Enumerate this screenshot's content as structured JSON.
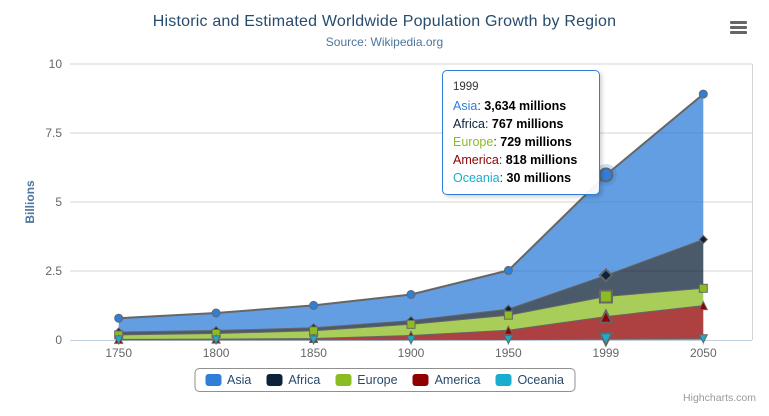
{
  "credits": {
    "label": "Highcharts.com"
  },
  "context_menu": {
    "icon": "hamburger-icon"
  },
  "theme": {
    "title_color": "#274b6d",
    "subtitle_color": "#4d759e",
    "axis_label_color": "#666666",
    "axis_title_color": "#4d759e",
    "legend_text_color": "#274b6d",
    "legend_border_color": "#909090",
    "grid_line_color": "#d4d4d4",
    "axis_line_color": "#c0d0e0",
    "series_line_color": "#666666",
    "tooltip_border_color": "#2f7ed8",
    "credits_color": "#999999",
    "fill_opacity": 0.75
  },
  "chart_data": {
    "type": "area",
    "stacking": "normal",
    "title": "Historic and Estimated Worldwide Population Growth by Region",
    "subtitle": "Source: Wikipedia.org",
    "categories": [
      "1750",
      "1800",
      "1850",
      "1900",
      "1950",
      "1999",
      "2050"
    ],
    "xlabel": "",
    "ylabel": "Billions",
    "ylim": [
      0,
      10
    ],
    "yticks": [
      "0",
      "2.5",
      "5",
      "7.5",
      "10"
    ],
    "ytick_values": [
      0,
      2.5,
      5,
      7.5,
      10
    ],
    "value_unit": "millions",
    "grid": "horizontal",
    "legend_position": "bottom",
    "series": [
      {
        "name": "Asia",
        "color": "#2f7ed8",
        "marker": "circle",
        "values": [
          502,
          635,
          809,
          947,
          1402,
          3634,
          5268
        ]
      },
      {
        "name": "Africa",
        "color": "#0d233a",
        "marker": "diamond",
        "values": [
          106,
          107,
          111,
          133,
          221,
          767,
          1766
        ]
      },
      {
        "name": "Europe",
        "color": "#8bbc21",
        "marker": "square",
        "values": [
          163,
          203,
          276,
          408,
          547,
          729,
          628
        ]
      },
      {
        "name": "America",
        "color": "#910000",
        "marker": "triangle",
        "values": [
          18,
          31,
          54,
          156,
          339,
          818,
          1201
        ]
      },
      {
        "name": "Oceania",
        "color": "#1aadce",
        "marker": "triangle-down",
        "values": [
          2,
          2,
          2,
          6,
          13,
          30,
          46
        ]
      }
    ]
  },
  "tooltip": {
    "header": "1999",
    "hover_category_index": 5,
    "hover_series": "Asia",
    "rows": [
      {
        "series": "Asia",
        "value": "3,634 millions"
      },
      {
        "series": "Africa",
        "value": "767 millions"
      },
      {
        "series": "Europe",
        "value": "729 millions"
      },
      {
        "series": "America",
        "value": "818 millions"
      },
      {
        "series": "Oceania",
        "value": "30 millions"
      }
    ]
  }
}
